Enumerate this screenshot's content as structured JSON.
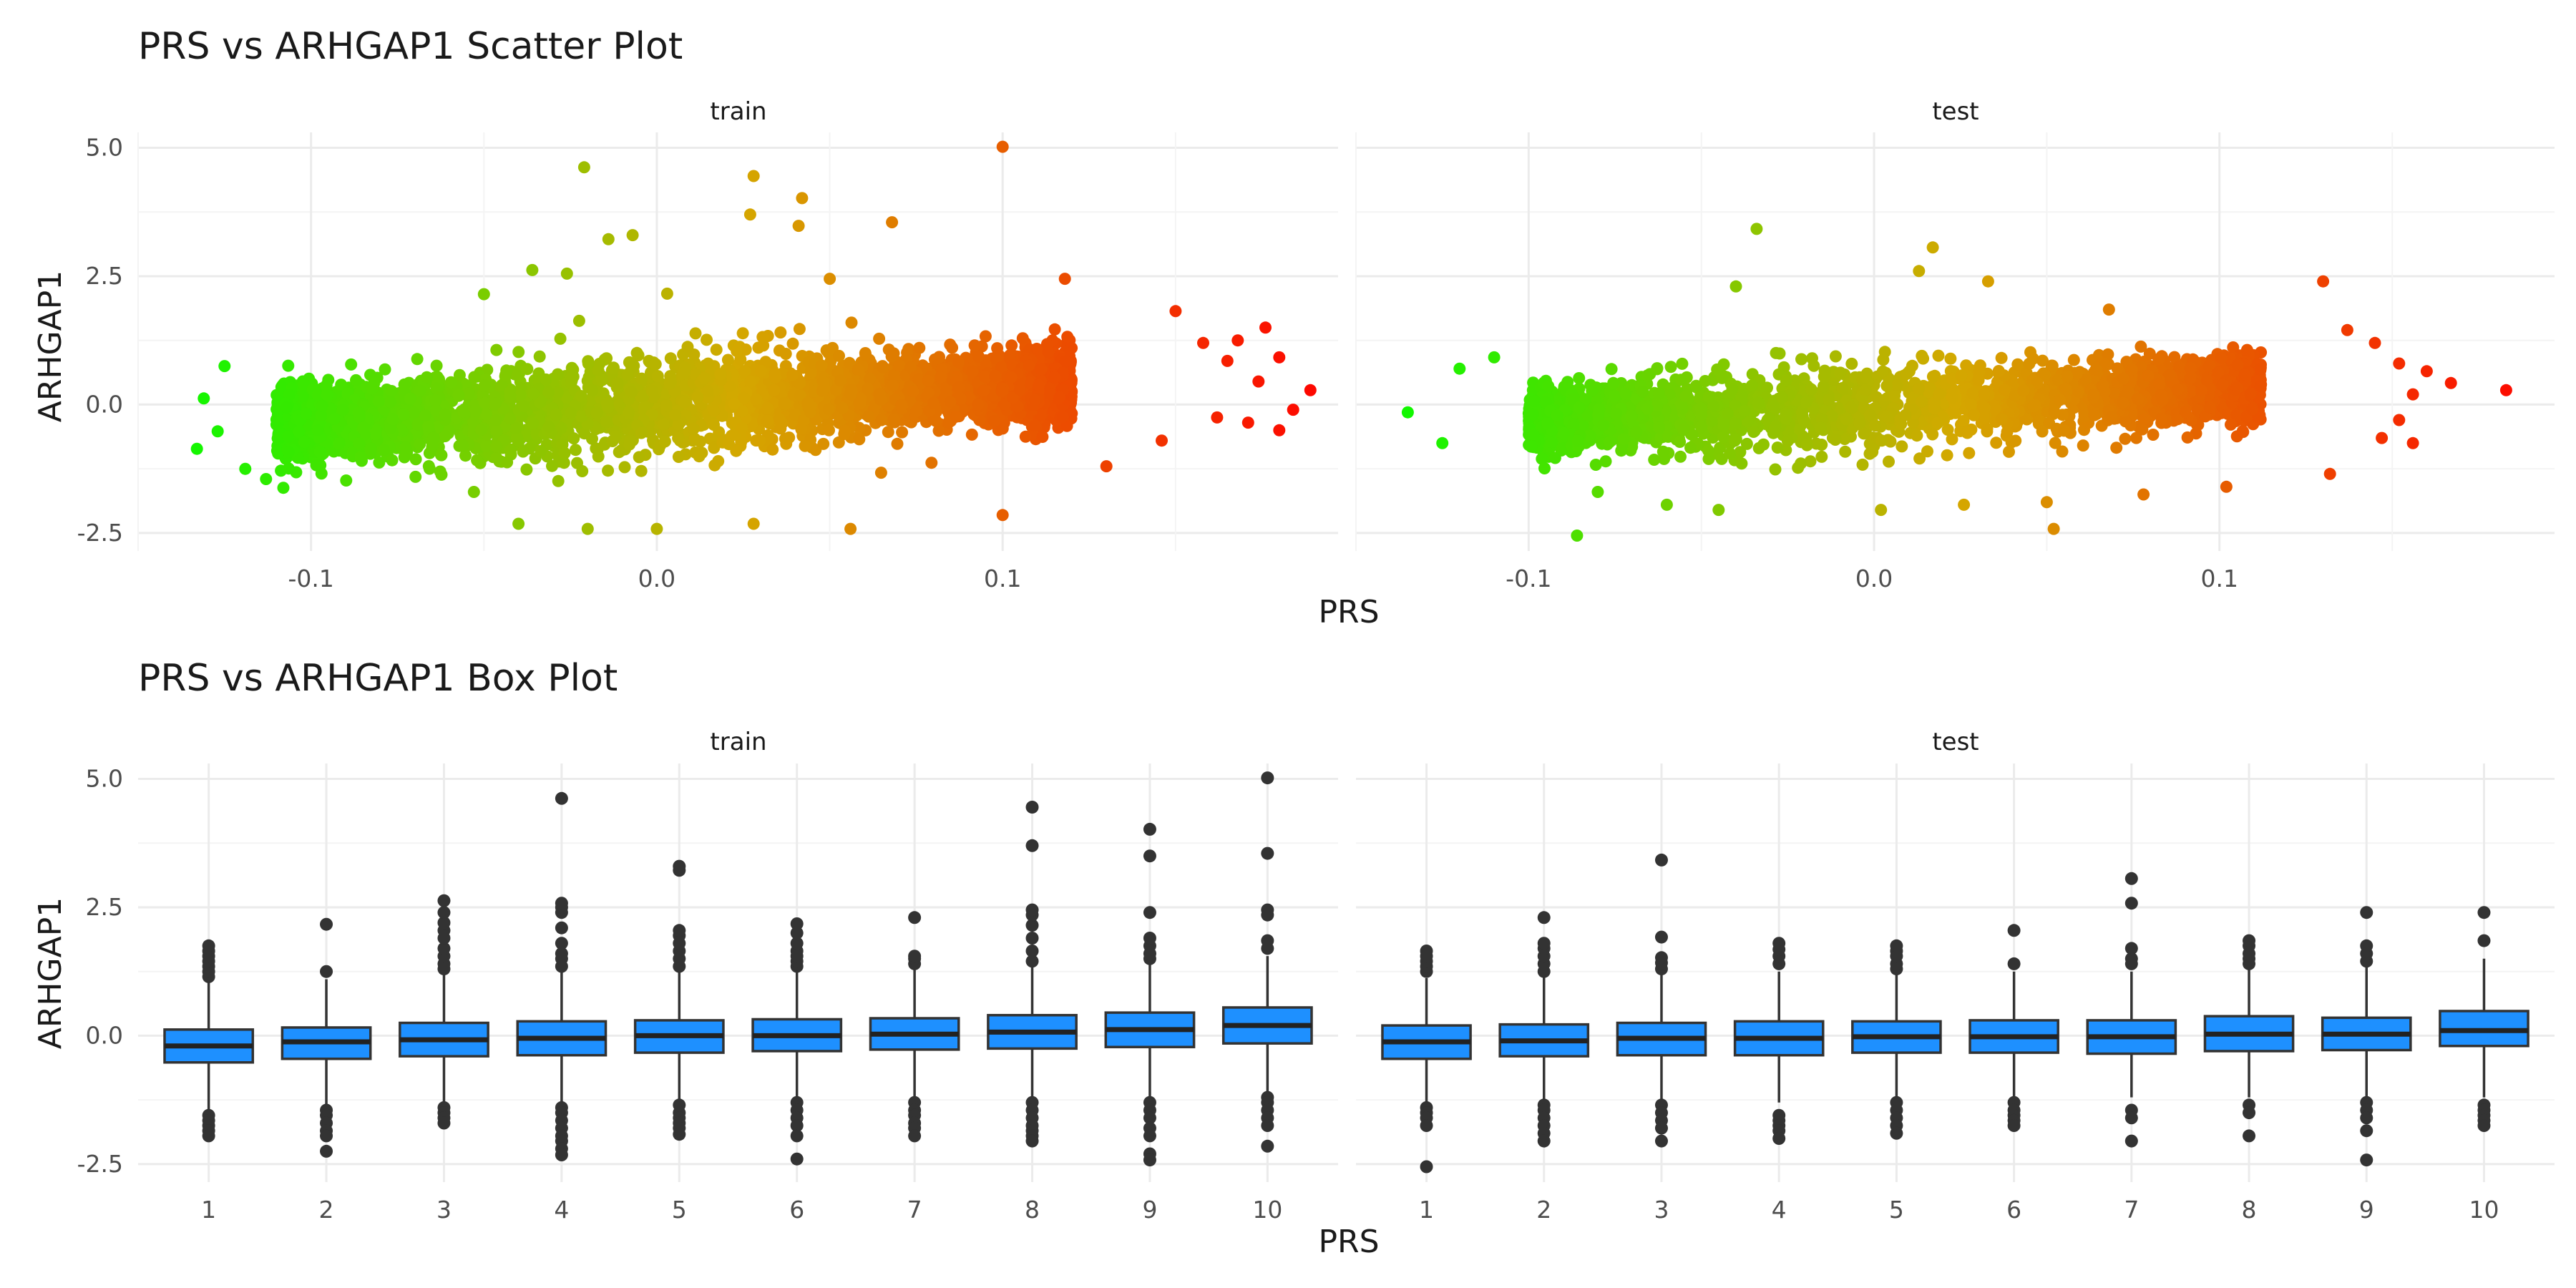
{
  "chart_data": [
    {
      "type": "scatter",
      "title": "PRS vs ARHGAP1 Scatter Plot",
      "xlabel": "PRS",
      "ylabel": "ARHGAP1",
      "xlim": [
        -0.15,
        0.197
      ],
      "ylim": [
        -2.85,
        5.3
      ],
      "x_ticks": [
        -0.1,
        0.0,
        0.1
      ],
      "x_tick_labels": [
        "-0.1",
        "0.0",
        "0.1"
      ],
      "y_ticks": [
        -2.5,
        0.0,
        2.5,
        5.0
      ],
      "y_tick_labels": [
        "-2.5",
        "0.0",
        "2.5",
        "5.0"
      ],
      "color_scale": {
        "low": "#00ff00",
        "mid": "#d4a800",
        "high": "#ff0000",
        "mapped_to": "PRS"
      },
      "grid": true,
      "panels": [
        {
          "name": "train",
          "bulk": {
            "x_range": [
              -0.11,
              0.12
            ],
            "core_y_sd": 0.38,
            "slope": 3.5
          },
          "points": [
            {
              "x": -0.021,
              "y": 4.62
            },
            {
              "x": 0.028,
              "y": 4.45
            },
            {
              "x": 0.1,
              "y": 5.02
            },
            {
              "x": 0.042,
              "y": 4.02
            },
            {
              "x": 0.027,
              "y": 3.7
            },
            {
              "x": 0.041,
              "y": 3.48
            },
            {
              "x": 0.068,
              "y": 3.55
            },
            {
              "x": -0.007,
              "y": 3.3
            },
            {
              "x": -0.014,
              "y": 3.22
            },
            {
              "x": -0.036,
              "y": 2.62
            },
            {
              "x": -0.026,
              "y": 2.55
            },
            {
              "x": 0.003,
              "y": 2.16
            },
            {
              "x": 0.05,
              "y": 2.45
            },
            {
              "x": 0.118,
              "y": 2.45
            },
            {
              "x": -0.05,
              "y": 2.15
            },
            {
              "x": -0.125,
              "y": 0.75
            },
            {
              "x": -0.131,
              "y": 0.12
            },
            {
              "x": -0.133,
              "y": -0.86
            },
            {
              "x": -0.127,
              "y": -0.52
            },
            {
              "x": -0.119,
              "y": -1.25
            },
            {
              "x": -0.113,
              "y": -1.45
            },
            {
              "x": -0.108,
              "y": -1.62
            },
            {
              "x": -0.04,
              "y": -2.32
            },
            {
              "x": -0.02,
              "y": -2.42
            },
            {
              "x": 0.0,
              "y": -2.42
            },
            {
              "x": 0.028,
              "y": -2.32
            },
            {
              "x": 0.056,
              "y": -2.42
            },
            {
              "x": 0.1,
              "y": -2.15
            },
            {
              "x": 0.15,
              "y": 1.82
            },
            {
              "x": 0.158,
              "y": 1.2
            },
            {
              "x": 0.165,
              "y": 0.85
            },
            {
              "x": 0.168,
              "y": 1.25
            },
            {
              "x": 0.176,
              "y": 1.5
            },
            {
              "x": 0.18,
              "y": 0.92
            },
            {
              "x": 0.174,
              "y": 0.45
            },
            {
              "x": 0.184,
              "y": -0.1
            },
            {
              "x": 0.18,
              "y": -0.5
            },
            {
              "x": 0.189,
              "y": 0.28
            },
            {
              "x": 0.171,
              "y": -0.35
            },
            {
              "x": 0.162,
              "y": -0.25
            },
            {
              "x": 0.146,
              "y": -0.7
            },
            {
              "x": 0.13,
              "y": -1.2
            }
          ]
        },
        {
          "name": "test",
          "bulk": {
            "x_range": [
              -0.1,
              0.112
            ],
            "core_y_sd": 0.34,
            "slope": 3.2
          },
          "points": [
            {
              "x": -0.034,
              "y": 3.42
            },
            {
              "x": 0.017,
              "y": 3.06
            },
            {
              "x": 0.013,
              "y": 2.6
            },
            {
              "x": -0.04,
              "y": 2.3
            },
            {
              "x": 0.033,
              "y": 2.4
            },
            {
              "x": 0.068,
              "y": 1.85
            },
            {
              "x": 0.13,
              "y": 2.4
            },
            {
              "x": -0.135,
              "y": -0.15
            },
            {
              "x": -0.125,
              "y": -0.75
            },
            {
              "x": -0.12,
              "y": 0.7
            },
            {
              "x": -0.11,
              "y": 0.92
            },
            {
              "x": -0.086,
              "y": -2.55
            },
            {
              "x": -0.08,
              "y": -1.7
            },
            {
              "x": -0.06,
              "y": -1.95
            },
            {
              "x": -0.045,
              "y": -2.05
            },
            {
              "x": 0.002,
              "y": -2.05
            },
            {
              "x": 0.026,
              "y": -1.95
            },
            {
              "x": 0.05,
              "y": -1.9
            },
            {
              "x": 0.052,
              "y": -2.42
            },
            {
              "x": 0.078,
              "y": -1.75
            },
            {
              "x": 0.102,
              "y": -1.6
            },
            {
              "x": 0.132,
              "y": -1.35
            },
            {
              "x": 0.137,
              "y": 1.45
            },
            {
              "x": 0.145,
              "y": 1.2
            },
            {
              "x": 0.152,
              "y": 0.8
            },
            {
              "x": 0.16,
              "y": 0.65
            },
            {
              "x": 0.156,
              "y": 0.2
            },
            {
              "x": 0.152,
              "y": -0.3
            },
            {
              "x": 0.156,
              "y": -0.75
            },
            {
              "x": 0.167,
              "y": 0.42
            },
            {
              "x": 0.183,
              "y": 0.28
            },
            {
              "x": 0.147,
              "y": -0.65
            }
          ]
        }
      ]
    },
    {
      "type": "box",
      "title": "PRS vs ARHGAP1 Box Plot",
      "xlabel": "PRS",
      "ylabel": "ARHGAP1",
      "ylim": [
        -2.85,
        5.3
      ],
      "y_ticks": [
        -2.5,
        0.0,
        2.5,
        5.0
      ],
      "y_tick_labels": [
        "-2.5",
        "0.0",
        "2.5",
        "5.0"
      ],
      "categories": [
        "1",
        "2",
        "3",
        "4",
        "5",
        "6",
        "7",
        "8",
        "9",
        "10"
      ],
      "box_fill": "#1e90ff",
      "box_stroke": "#333333",
      "grid": true,
      "panels": [
        {
          "name": "train",
          "boxes": [
            {
              "q1": -0.52,
              "median": -0.2,
              "q3": 0.12,
              "whisker_low": -1.45,
              "whisker_high": 1.05,
              "outliers_high": [
                1.15,
                1.25,
                1.35,
                1.45,
                1.55,
                1.65,
                1.75
              ],
              "outliers_low": [
                -1.55,
                -1.65,
                -1.75,
                -1.85,
                -1.95
              ]
            },
            {
              "q1": -0.45,
              "median": -0.12,
              "q3": 0.16,
              "whisker_low": -1.35,
              "whisker_high": 1.1,
              "outliers_high": [
                1.25,
                2.17
              ],
              "outliers_low": [
                -1.45,
                -1.55,
                -1.7,
                -1.85,
                -1.95,
                -2.25
              ]
            },
            {
              "q1": -0.4,
              "median": -0.08,
              "q3": 0.25,
              "whisker_low": -1.3,
              "whisker_high": 1.2,
              "outliers_high": [
                1.3,
                1.4,
                1.55,
                1.7,
                1.9,
                2.05,
                2.2,
                2.4,
                2.63
              ],
              "outliers_low": [
                -1.4,
                -1.5,
                -1.6,
                -1.7
              ]
            },
            {
              "q1": -0.38,
              "median": -0.05,
              "q3": 0.28,
              "whisker_low": -1.3,
              "whisker_high": 1.25,
              "outliers_high": [
                1.35,
                1.5,
                1.6,
                1.8,
                2.1,
                2.4,
                2.5,
                2.58,
                4.62
              ],
              "outliers_low": [
                -1.4,
                -1.5,
                -1.65,
                -1.8,
                -1.95,
                -2.05,
                -2.2,
                -2.32
              ]
            },
            {
              "q1": -0.33,
              "median": 0.0,
              "q3": 0.3,
              "whisker_low": -1.25,
              "whisker_high": 1.25,
              "outliers_high": [
                1.35,
                1.5,
                1.65,
                1.8,
                1.95,
                2.05,
                3.22,
                3.3
              ],
              "outliers_low": [
                -1.35,
                -1.5,
                -1.6,
                -1.7,
                -1.8,
                -1.92
              ]
            },
            {
              "q1": -0.3,
              "median": 0.0,
              "q3": 0.32,
              "whisker_low": -1.2,
              "whisker_high": 1.25,
              "outliers_high": [
                1.35,
                1.45,
                1.55,
                1.65,
                1.8,
                2.0,
                2.18
              ],
              "outliers_low": [
                -1.3,
                -1.45,
                -1.6,
                -1.75,
                -1.95,
                -2.4
              ]
            },
            {
              "q1": -0.27,
              "median": 0.03,
              "q3": 0.34,
              "whisker_low": -1.2,
              "whisker_high": 1.3,
              "outliers_high": [
                1.4,
                1.5,
                1.55,
                2.3
              ],
              "outliers_low": [
                -1.3,
                -1.45,
                -1.55,
                -1.7,
                -1.8,
                -1.95
              ]
            },
            {
              "q1": -0.25,
              "median": 0.07,
              "q3": 0.4,
              "whisker_low": -1.2,
              "whisker_high": 1.35,
              "outliers_high": [
                1.45,
                1.65,
                1.9,
                2.15,
                2.35,
                2.45,
                3.7,
                4.45
              ],
              "outliers_low": [
                -1.3,
                -1.45,
                -1.6,
                -1.75,
                -1.85,
                -1.95,
                -2.05
              ]
            },
            {
              "q1": -0.22,
              "median": 0.12,
              "q3": 0.45,
              "whisker_low": -1.2,
              "whisker_high": 1.4,
              "outliers_high": [
                1.5,
                1.6,
                1.75,
                1.9,
                2.4,
                3.5,
                4.02
              ],
              "outliers_low": [
                -1.3,
                -1.45,
                -1.6,
                -1.8,
                -1.95,
                -2.3,
                -2.42
              ]
            },
            {
              "q1": -0.15,
              "median": 0.2,
              "q3": 0.55,
              "whisker_low": -1.1,
              "whisker_high": 1.55,
              "outliers_high": [
                1.7,
                1.85,
                2.35,
                2.45,
                3.55,
                5.02
              ],
              "outliers_low": [
                -1.2,
                -1.3,
                -1.45,
                -1.6,
                -1.75,
                -2.15
              ]
            }
          ]
        },
        {
          "name": "test",
          "boxes": [
            {
              "q1": -0.45,
              "median": -0.12,
              "q3": 0.2,
              "whisker_low": -1.35,
              "whisker_high": 1.12,
              "outliers_high": [
                1.25,
                1.35,
                1.45,
                1.55,
                1.65
              ],
              "outliers_low": [
                -1.4,
                -1.5,
                -1.6,
                -1.75,
                -2.55
              ]
            },
            {
              "q1": -0.4,
              "median": -0.1,
              "q3": 0.22,
              "whisker_low": -1.25,
              "whisker_high": 1.15,
              "outliers_high": [
                1.25,
                1.4,
                1.55,
                1.7,
                1.8,
                2.3
              ],
              "outliers_low": [
                -1.35,
                -1.45,
                -1.6,
                -1.75,
                -1.9,
                -2.05
              ]
            },
            {
              "q1": -0.38,
              "median": -0.05,
              "q3": 0.25,
              "whisker_low": -1.25,
              "whisker_high": 1.2,
              "outliers_high": [
                1.3,
                1.42,
                1.52,
                1.92,
                3.42
              ],
              "outliers_low": [
                -1.35,
                -1.5,
                -1.65,
                -1.8,
                -2.05
              ]
            },
            {
              "q1": -0.38,
              "median": -0.05,
              "q3": 0.28,
              "whisker_low": -1.3,
              "whisker_high": 1.25,
              "outliers_high": [
                1.4,
                1.55,
                1.68,
                1.8
              ],
              "outliers_low": [
                -1.55,
                -1.65,
                -1.75,
                -1.85,
                -2.0
              ]
            },
            {
              "q1": -0.33,
              "median": -0.02,
              "q3": 0.28,
              "whisker_low": -1.2,
              "whisker_high": 1.2,
              "outliers_high": [
                1.3,
                1.4,
                1.55,
                1.65,
                1.75
              ],
              "outliers_low": [
                -1.3,
                -1.45,
                -1.6,
                -1.75,
                -1.9
              ]
            },
            {
              "q1": -0.33,
              "median": -0.02,
              "q3": 0.3,
              "whisker_low": -1.2,
              "whisker_high": 1.25,
              "outliers_high": [
                1.4,
                2.05
              ],
              "outliers_low": [
                -1.3,
                -1.45,
                -1.55,
                -1.65,
                -1.75
              ]
            },
            {
              "q1": -0.35,
              "median": -0.02,
              "q3": 0.3,
              "whisker_low": -1.2,
              "whisker_high": 1.25,
              "outliers_high": [
                1.4,
                1.5,
                1.7,
                2.58,
                3.06
              ],
              "outliers_low": [
                -1.45,
                -1.6,
                -2.05
              ]
            },
            {
              "q1": -0.3,
              "median": 0.03,
              "q3": 0.38,
              "whisker_low": -1.2,
              "whisker_high": 1.3,
              "outliers_high": [
                1.4,
                1.5,
                1.6,
                1.75,
                1.85
              ],
              "outliers_low": [
                -1.35,
                -1.5,
                -1.95
              ]
            },
            {
              "q1": -0.28,
              "median": 0.03,
              "q3": 0.35,
              "whisker_low": -1.2,
              "whisker_high": 1.35,
              "outliers_high": [
                1.45,
                1.6,
                1.75,
                2.4
              ],
              "outliers_low": [
                -1.3,
                -1.45,
                -1.6,
                -1.85,
                -2.42
              ]
            },
            {
              "q1": -0.2,
              "median": 0.1,
              "q3": 0.48,
              "whisker_low": -1.2,
              "whisker_high": 1.5,
              "outliers_high": [
                1.85,
                2.4
              ],
              "outliers_low": [
                -1.35,
                -1.45,
                -1.55,
                -1.65,
                -1.75
              ]
            }
          ]
        }
      ]
    }
  ]
}
